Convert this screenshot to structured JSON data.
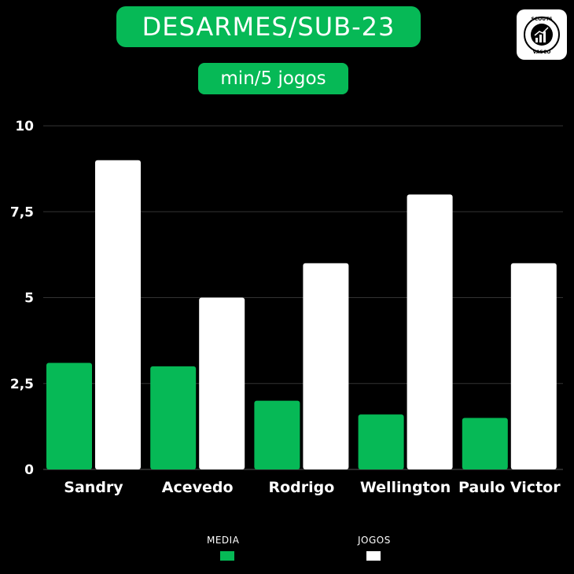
{
  "header": {
    "title": "DESARMES/SUB-23",
    "subtitle": "min/5 jogos"
  },
  "logo": {
    "top_text": "SCOUTS",
    "bottom_text": "VASCO",
    "icon": "bar-chart-icon"
  },
  "colors": {
    "background": "#000000",
    "accent_green": "#06b956",
    "white": "#ffffff",
    "grid": "#333333"
  },
  "legend": [
    {
      "label": "MEDIA",
      "color": "#06b956"
    },
    {
      "label": "JOGOS",
      "color": "#ffffff"
    }
  ],
  "chart_data": {
    "type": "bar",
    "categories": [
      "Sandry",
      "Acevedo",
      "Rodrigo",
      "Wellington",
      "Paulo Victor"
    ],
    "series": [
      {
        "name": "MEDIA",
        "values": [
          3.1,
          3.0,
          2.0,
          1.6,
          1.5
        ],
        "color": "#06b956"
      },
      {
        "name": "JOGOS",
        "values": [
          9,
          5,
          6,
          8,
          6
        ],
        "color": "#ffffff"
      }
    ],
    "yticks": [
      0,
      2.5,
      5,
      7.5,
      10
    ],
    "ytick_labels": [
      "0",
      "2,5",
      "5",
      "7,5",
      "10"
    ],
    "ylim": [
      0,
      10
    ],
    "grid": true,
    "legend_position": "bottom"
  }
}
